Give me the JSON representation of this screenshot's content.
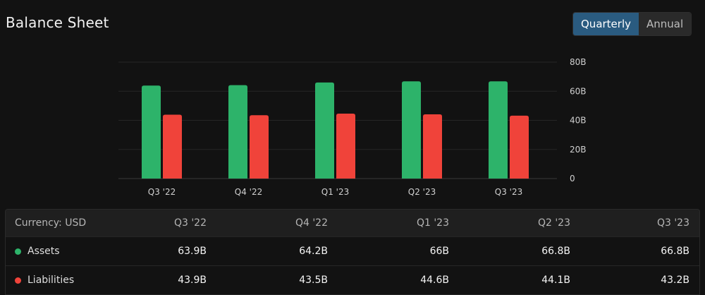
{
  "header": {
    "title": "Balance Sheet",
    "toggle": [
      {
        "label": "Quarterly",
        "active": true
      },
      {
        "label": "Annual",
        "active": false
      }
    ]
  },
  "chart_data": {
    "type": "bar",
    "categories": [
      "Q3 '22",
      "Q4 '22",
      "Q1 '23",
      "Q2 '23",
      "Q3 '23"
    ],
    "series": [
      {
        "name": "Assets",
        "color": "#2db36a",
        "values": [
          63.9,
          64.2,
          66,
          66.8,
          66.8
        ]
      },
      {
        "name": "Liabilities",
        "color": "#f0433a",
        "values": [
          43.9,
          43.5,
          44.6,
          44.1,
          43.2
        ]
      }
    ],
    "y_ticks": [
      0,
      20,
      40,
      60,
      80
    ],
    "y_tick_labels": [
      "0",
      "20B",
      "40B",
      "60B",
      "80B"
    ],
    "ylim": [
      0,
      80
    ],
    "y_axis_position": "right",
    "grid": true
  },
  "table": {
    "currency_label": "Currency: USD",
    "columns": [
      "Q3 '22",
      "Q4 '22",
      "Q1 '23",
      "Q2 '23",
      "Q3 '23"
    ],
    "rows": [
      {
        "label": "Assets",
        "color": "#2db36a",
        "values": [
          "63.9B",
          "64.2B",
          "66B",
          "66.8B",
          "66.8B"
        ]
      },
      {
        "label": "Liabilities",
        "color": "#f0433a",
        "values": [
          "43.9B",
          "43.5B",
          "44.6B",
          "44.1B",
          "43.2B"
        ]
      }
    ]
  }
}
